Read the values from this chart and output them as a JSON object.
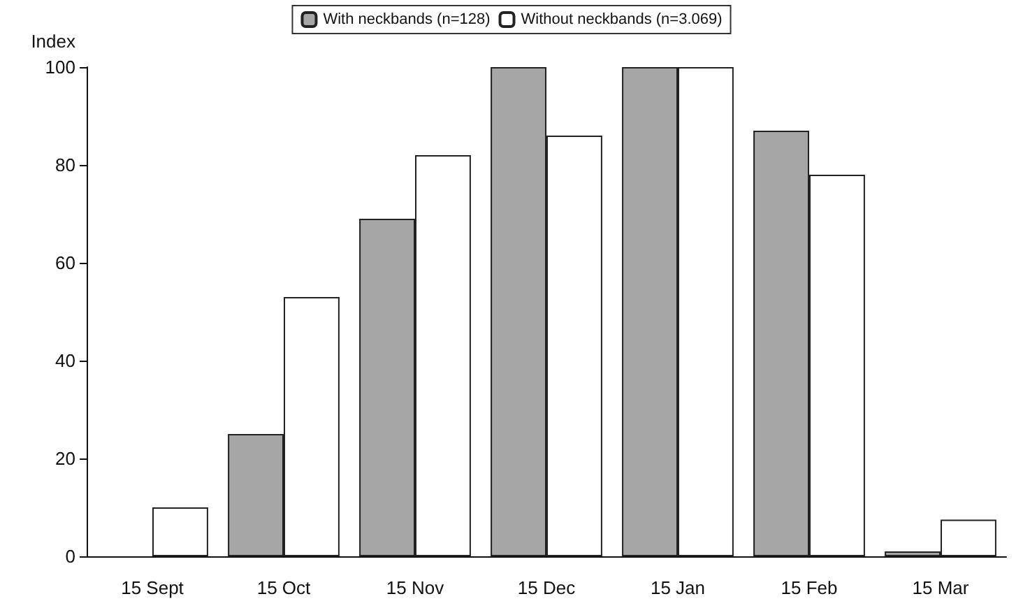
{
  "chart_data": {
    "type": "bar",
    "ylabel": "Index",
    "categories": [
      "15 Sept",
      "15 Oct",
      "15 Nov",
      "15 Dec",
      "15 Jan",
      "15 Feb",
      "15 Mar"
    ],
    "series": [
      {
        "name": "With neckbands (n=128)",
        "color": "#a6a6a6",
        "values": [
          0,
          25,
          69,
          100,
          100,
          87,
          1
        ]
      },
      {
        "name": "Without neckbands (n=3.069)",
        "color": "#ffffff",
        "values": [
          10,
          53,
          82,
          86,
          100,
          78,
          7.5
        ]
      }
    ],
    "ylim": [
      0,
      100
    ],
    "yticks": [
      0,
      20,
      40,
      60,
      80,
      100
    ],
    "grid": false,
    "legend": "top"
  }
}
